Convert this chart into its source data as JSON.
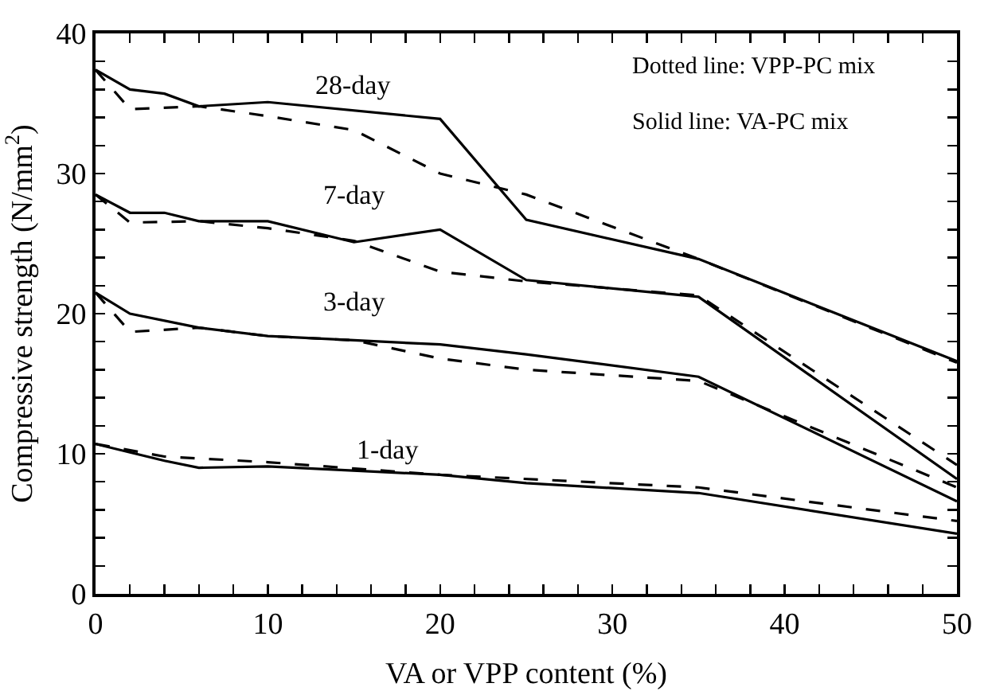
{
  "chart_data": {
    "type": "line",
    "xlabel": "VA or VPP content (%)",
    "ylabel": "Compressive strength (N/mm$^{2}$)",
    "xlim": [
      0,
      50
    ],
    "ylim": [
      0,
      40
    ],
    "xticks": [
      0,
      {
        "value": 2,
        "label": null
      },
      {
        "value": 4,
        "label": null
      },
      {
        "value": 6,
        "label": null
      },
      {
        "value": 8,
        "label": null
      },
      10,
      {
        "value": 12,
        "label": null
      },
      {
        "value": 14,
        "label": null
      },
      {
        "value": 16,
        "label": null
      },
      {
        "value": 18,
        "label": null
      },
      20,
      {
        "value": 22,
        "label": null
      },
      {
        "value": 24,
        "label": null
      },
      {
        "value": 26,
        "label": null
      },
      {
        "value": 28,
        "label": null
      },
      30,
      {
        "value": 32,
        "label": null
      },
      {
        "value": 34,
        "label": null
      },
      {
        "value": 36,
        "label": null
      },
      {
        "value": 38,
        "label": null
      },
      40,
      {
        "value": 42,
        "label": null
      },
      {
        "value": 44,
        "label": null
      },
      {
        "value": 46,
        "label": null
      },
      {
        "value": 48,
        "label": null
      },
      50
    ],
    "yticks": [
      0,
      {
        "value": 2,
        "label": null
      },
      {
        "value": 4,
        "label": null
      },
      {
        "value": 6,
        "label": null
      },
      {
        "value": 8,
        "label": null
      },
      10,
      {
        "value": 12,
        "label": null
      },
      {
        "value": 14,
        "label": null
      },
      {
        "value": 16,
        "label": null
      },
      {
        "value": 18,
        "label": null
      },
      20,
      {
        "value": 22,
        "label": null
      },
      {
        "value": 24,
        "label": null
      },
      {
        "value": 26,
        "label": null
      },
      {
        "value": 28,
        "label": null
      },
      30,
      {
        "value": 32,
        "label": null
      },
      {
        "value": 34,
        "label": null
      },
      {
        "value": 36,
        "label": null
      },
      {
        "value": 38,
        "label": null
      },
      40
    ],
    "grid": false,
    "marker": "none",
    "annotations": [
      "28-day",
      "7-day",
      "3-day",
      "1-day",
      "Dotted line: VPP-PC mix",
      "Solid line: VA-PC mix"
    ],
    "series": [
      {
        "color": "#000000",
        "line_style": "solid",
        "x": [
          0,
          2,
          4,
          6,
          10,
          20,
          25,
          35,
          50
        ],
        "values": [
          37.4,
          36.0,
          35.7,
          34.8,
          35.1,
          33.9,
          26.7,
          23.9,
          16.6
        ]
      },
      {
        "color": "#000000",
        "line_style": "dashed",
        "x": [
          0,
          2,
          6,
          10,
          15,
          20,
          25,
          35,
          50
        ],
        "values": [
          37.4,
          34.6,
          34.8,
          34.1,
          33.1,
          30.0,
          28.5,
          23.9,
          16.5
        ]
      },
      {
        "color": "#000000",
        "line_style": "solid",
        "x": [
          0,
          2,
          4,
          6,
          10,
          15,
          20,
          25,
          35,
          50
        ],
        "values": [
          28.5,
          27.2,
          27.2,
          26.6,
          26.6,
          25.1,
          26.0,
          22.4,
          21.2,
          8.2
        ]
      },
      {
        "color": "#000000",
        "line_style": "dashed",
        "x": [
          0,
          2,
          6,
          10,
          15,
          20,
          25,
          35,
          50
        ],
        "values": [
          28.5,
          26.5,
          26.6,
          26.1,
          25.2,
          23.0,
          22.3,
          21.3,
          9.2
        ]
      },
      {
        "color": "#000000",
        "line_style": "solid",
        "x": [
          0,
          2,
          6,
          10,
          15,
          20,
          25,
          35,
          50
        ],
        "values": [
          21.5,
          20.0,
          19.0,
          18.4,
          18.1,
          17.8,
          17.1,
          15.5,
          6.6
        ]
      },
      {
        "color": "#000000",
        "line_style": "dashed",
        "x": [
          0,
          2,
          6,
          10,
          15,
          20,
          25,
          35,
          50
        ],
        "values": [
          21.5,
          18.7,
          19.0,
          18.4,
          18.1,
          16.8,
          16.0,
          15.2,
          7.6
        ]
      },
      {
        "color": "#000000",
        "line_style": "solid",
        "x": [
          0,
          2,
          4,
          6,
          10,
          20,
          25,
          35,
          50
        ],
        "values": [
          10.7,
          10.1,
          9.5,
          9.0,
          9.1,
          8.5,
          7.9,
          7.2,
          4.3
        ]
      },
      {
        "color": "#000000",
        "line_style": "dashed",
        "x": [
          0,
          4,
          10,
          20,
          35,
          50
        ],
        "values": [
          10.7,
          9.8,
          9.4,
          8.5,
          7.6,
          5.2
        ]
      }
    ]
  }
}
